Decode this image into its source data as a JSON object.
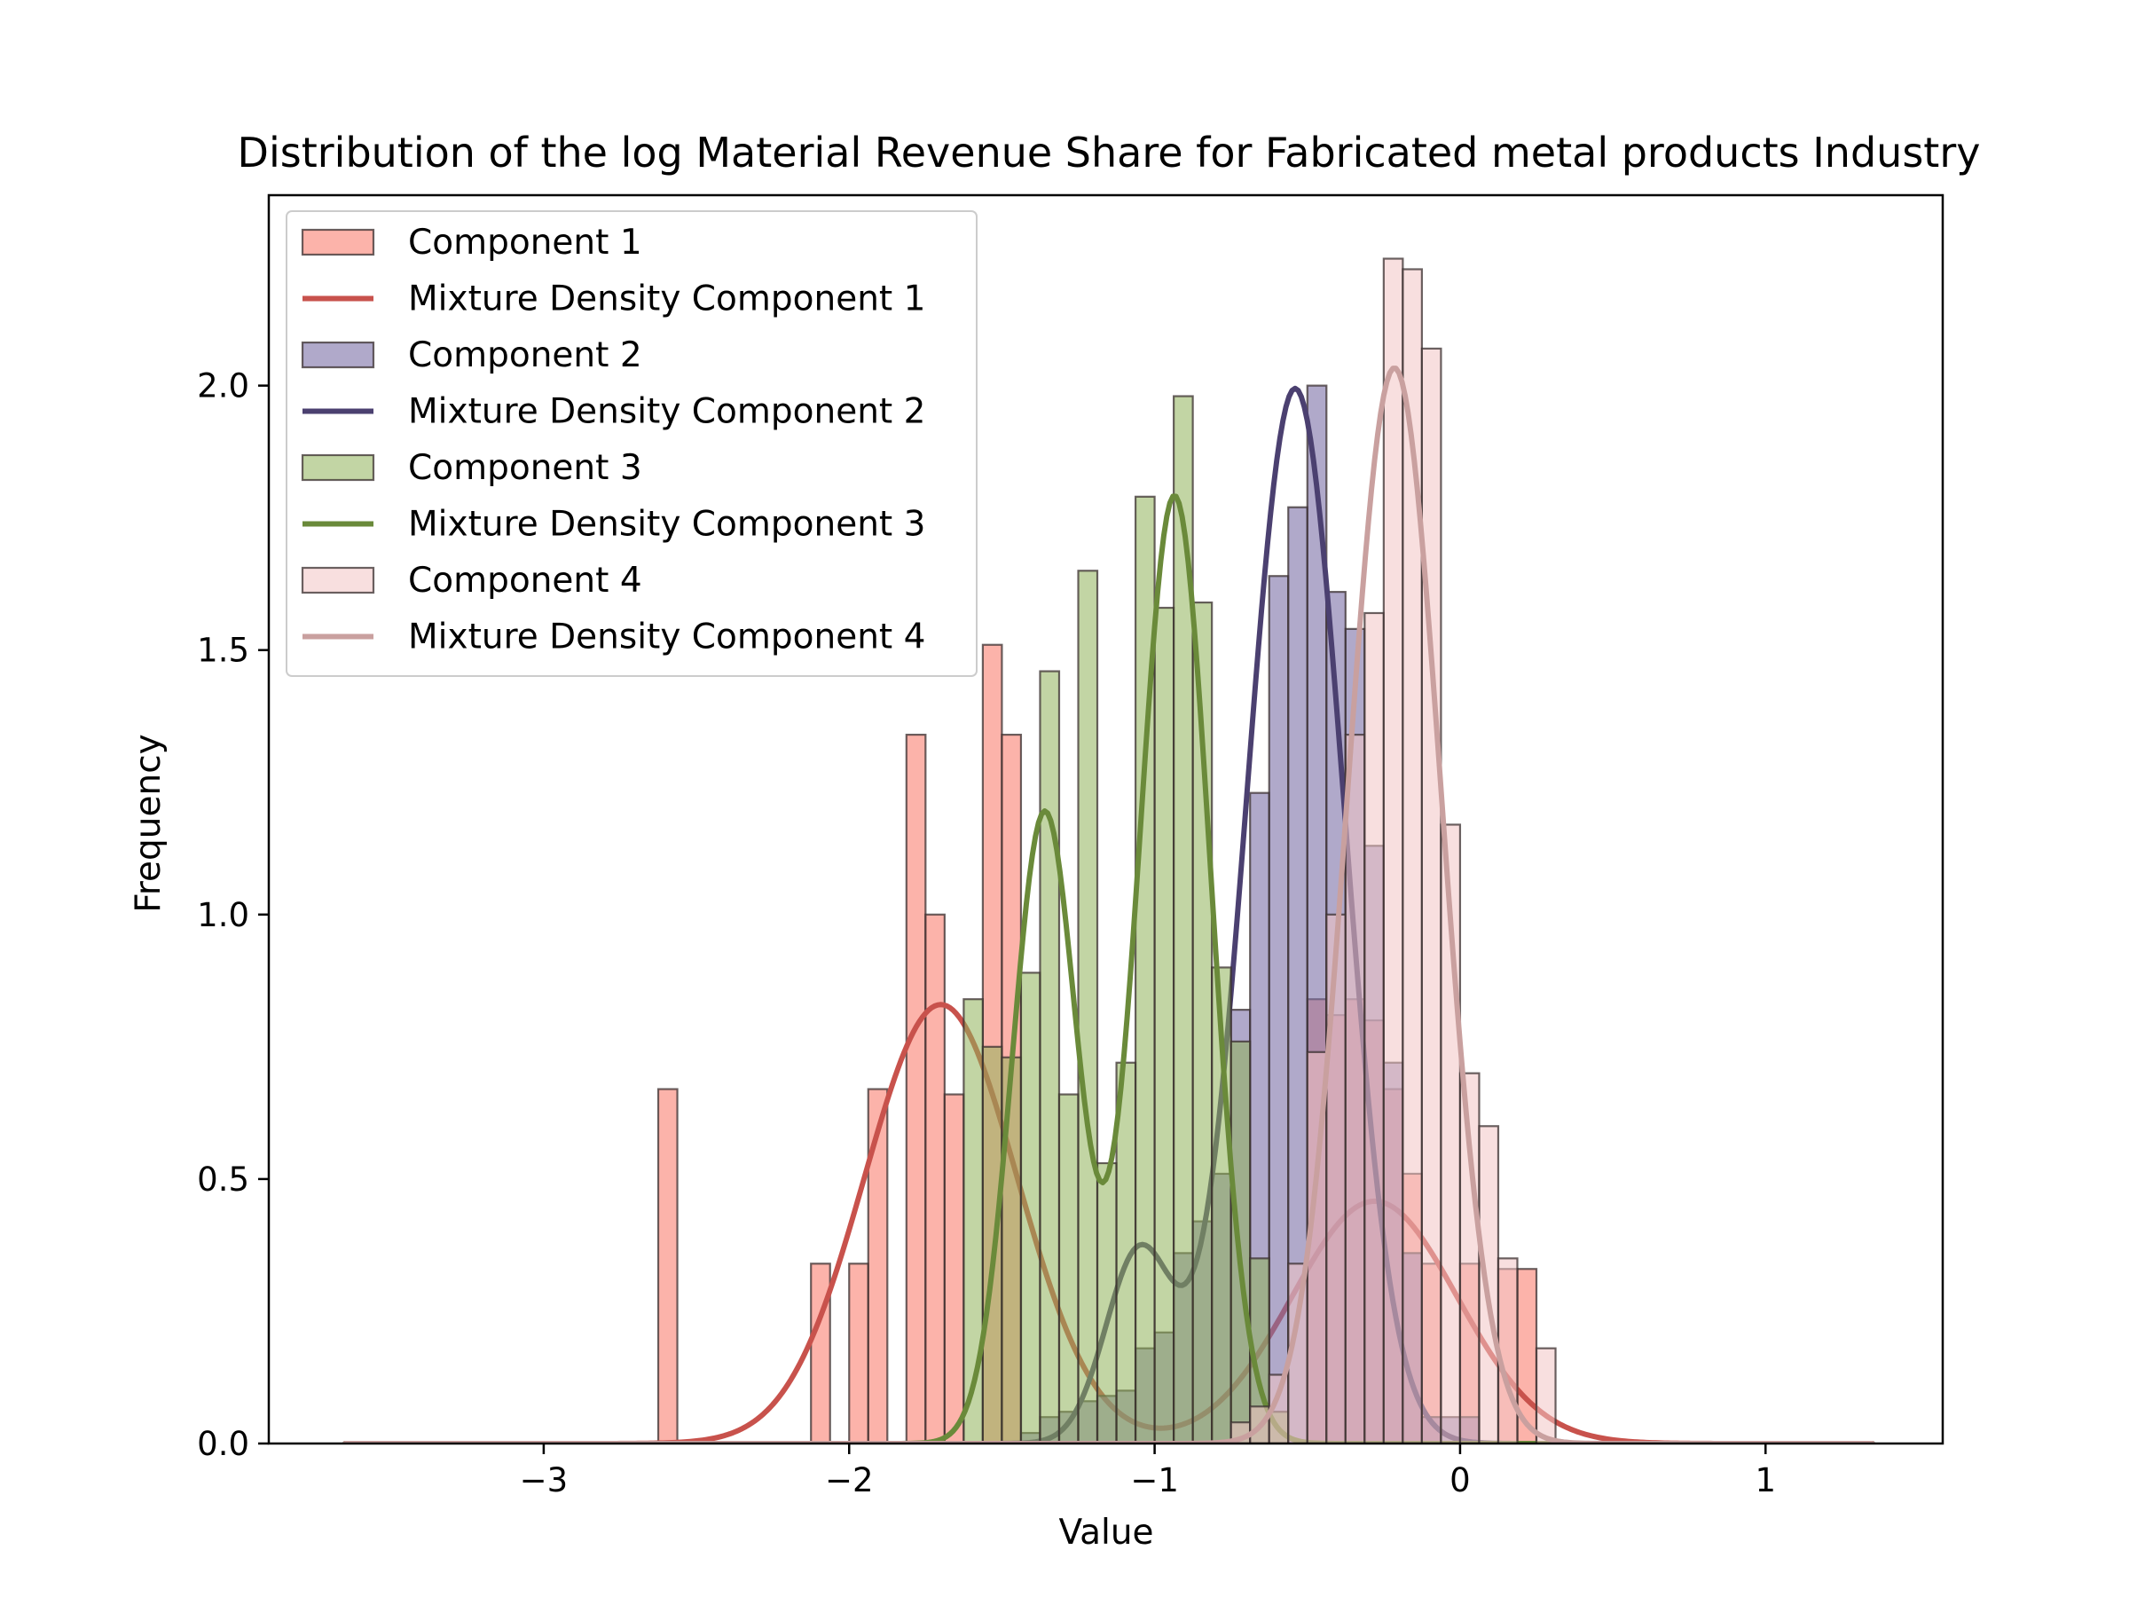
{
  "chart_data": {
    "type": "bar",
    "title": "Distribution of the log Material Revenue Share for Fabricated metal products Industry",
    "xlabel": "Value",
    "ylabel": "Frequency",
    "xlim": [
      -3.9,
      1.58
    ],
    "ylim": [
      0,
      2.36
    ],
    "xticks": [
      -3,
      -2,
      -1,
      0,
      1
    ],
    "yticks": [
      0.0,
      0.5,
      1.0,
      1.5,
      2.0
    ],
    "xtick_labels": [
      "−3",
      "−2",
      "−1",
      "0",
      "1"
    ],
    "ytick_labels": [
      "0.0",
      "0.5",
      "1.0",
      "1.5",
      "2.0"
    ],
    "legend_position": "top-left",
    "grid": false,
    "bin_width": 0.0625,
    "series": [
      {
        "name": "Component 1",
        "type": "histogram",
        "color": "#fa8072",
        "alpha": 0.6,
        "bins": [
          [
            -2.625,
            0.67
          ],
          [
            -2.125,
            0.34
          ],
          [
            -2.0,
            0.34
          ],
          [
            -1.9375,
            0.67
          ],
          [
            -1.8125,
            1.34
          ],
          [
            -1.75,
            1.0
          ],
          [
            -1.6875,
            0.66
          ],
          [
            -1.5625,
            1.51
          ],
          [
            -1.5,
            1.34
          ],
          [
            -0.5,
            0.84
          ],
          [
            -0.4375,
            0.81
          ],
          [
            -0.375,
            0.84
          ],
          [
            -0.3125,
            0.8
          ],
          [
            -0.25,
            0.67
          ],
          [
            -0.1875,
            0.51
          ],
          [
            -0.125,
            0.34
          ],
          [
            0.0,
            0.34
          ],
          [
            0.125,
            0.33
          ],
          [
            0.1875,
            0.33
          ]
        ]
      },
      {
        "name": "Mixture Density Component 1",
        "type": "line",
        "color": "#c8524c",
        "mixture": [
          {
            "w": 0.52,
            "mu": -1.7,
            "sigma": 0.25
          },
          {
            "w": 0.31,
            "mu": -0.28,
            "sigma": 0.27
          }
        ]
      },
      {
        "name": "Component 2",
        "type": "histogram",
        "color": "#7b6fa6",
        "alpha": 0.6,
        "bins": [
          [
            -1.4375,
            0.02
          ],
          [
            -1.375,
            0.05
          ],
          [
            -1.3125,
            0.06
          ],
          [
            -1.25,
            0.08
          ],
          [
            -1.1875,
            0.09
          ],
          [
            -1.125,
            0.1
          ],
          [
            -1.0625,
            0.18
          ],
          [
            -1.0,
            0.21
          ],
          [
            -0.9375,
            0.36
          ],
          [
            -0.875,
            0.42
          ],
          [
            -0.8125,
            0.51
          ],
          [
            -0.75,
            0.82
          ],
          [
            -0.6875,
            1.23
          ],
          [
            -0.625,
            1.64
          ],
          [
            -0.5625,
            1.77
          ],
          [
            -0.5,
            2.0
          ],
          [
            -0.4375,
            1.61
          ],
          [
            -0.375,
            1.54
          ],
          [
            -0.3125,
            1.13
          ],
          [
            -0.25,
            0.72
          ],
          [
            -0.1875,
            0.36
          ],
          [
            -0.125,
            0.05
          ],
          [
            -0.0625,
            0.05
          ],
          [
            0.0,
            0.05
          ]
        ]
      },
      {
        "name": "Mixture Density Component 2",
        "type": "line",
        "color": "#4b4070",
        "mixture": [
          {
            "w": 0.8,
            "mu": -0.54,
            "sigma": 0.16
          },
          {
            "w": 0.1,
            "mu": -1.05,
            "sigma": 0.11
          }
        ]
      },
      {
        "name": "Component 3",
        "type": "histogram",
        "color": "#8fb35a",
        "alpha": 0.55,
        "bins": [
          [
            -1.625,
            0.84
          ],
          [
            -1.5625,
            0.75
          ],
          [
            -1.5,
            0.73
          ],
          [
            -1.4375,
            0.89
          ],
          [
            -1.375,
            1.46
          ],
          [
            -1.3125,
            0.66
          ],
          [
            -1.25,
            1.65
          ],
          [
            -1.1875,
            0.53
          ],
          [
            -1.125,
            0.72
          ],
          [
            -1.0625,
            1.79
          ],
          [
            -1.0,
            1.58
          ],
          [
            -0.9375,
            1.98
          ],
          [
            -0.875,
            1.59
          ],
          [
            -0.8125,
            0.9
          ],
          [
            -0.75,
            0.76
          ],
          [
            -0.6875,
            0.35
          ],
          [
            -0.625,
            0.06
          ]
        ]
      },
      {
        "name": "Mixture Density Component 3",
        "type": "line",
        "color": "#6a8a3a",
        "mixture": [
          {
            "w": 0.32,
            "mu": -1.36,
            "sigma": 0.107
          },
          {
            "w": 0.53,
            "mu": -0.935,
            "sigma": 0.118
          }
        ]
      },
      {
        "name": "Component 4",
        "type": "histogram",
        "color": "#f2c4c4",
        "alpha": 0.55,
        "bins": [
          [
            -0.75,
            0.04
          ],
          [
            -0.6875,
            0.07
          ],
          [
            -0.625,
            0.13
          ],
          [
            -0.5625,
            0.34
          ],
          [
            -0.5,
            0.74
          ],
          [
            -0.4375,
            1.0
          ],
          [
            -0.375,
            1.34
          ],
          [
            -0.3125,
            1.57
          ],
          [
            -0.25,
            2.24
          ],
          [
            -0.1875,
            2.22
          ],
          [
            -0.125,
            2.07
          ],
          [
            -0.0625,
            1.17
          ],
          [
            0.0,
            0.7
          ],
          [
            0.0625,
            0.6
          ],
          [
            0.125,
            0.35
          ],
          [
            0.25,
            0.18
          ]
        ]
      },
      {
        "name": "Mixture Density Component 4",
        "type": "line",
        "color": "#c9a09f",
        "mixture": [
          {
            "w": 0.78,
            "mu": -0.215,
            "sigma": 0.153
          }
        ]
      }
    ],
    "line_range": [
      -3.65,
      1.35
    ]
  }
}
